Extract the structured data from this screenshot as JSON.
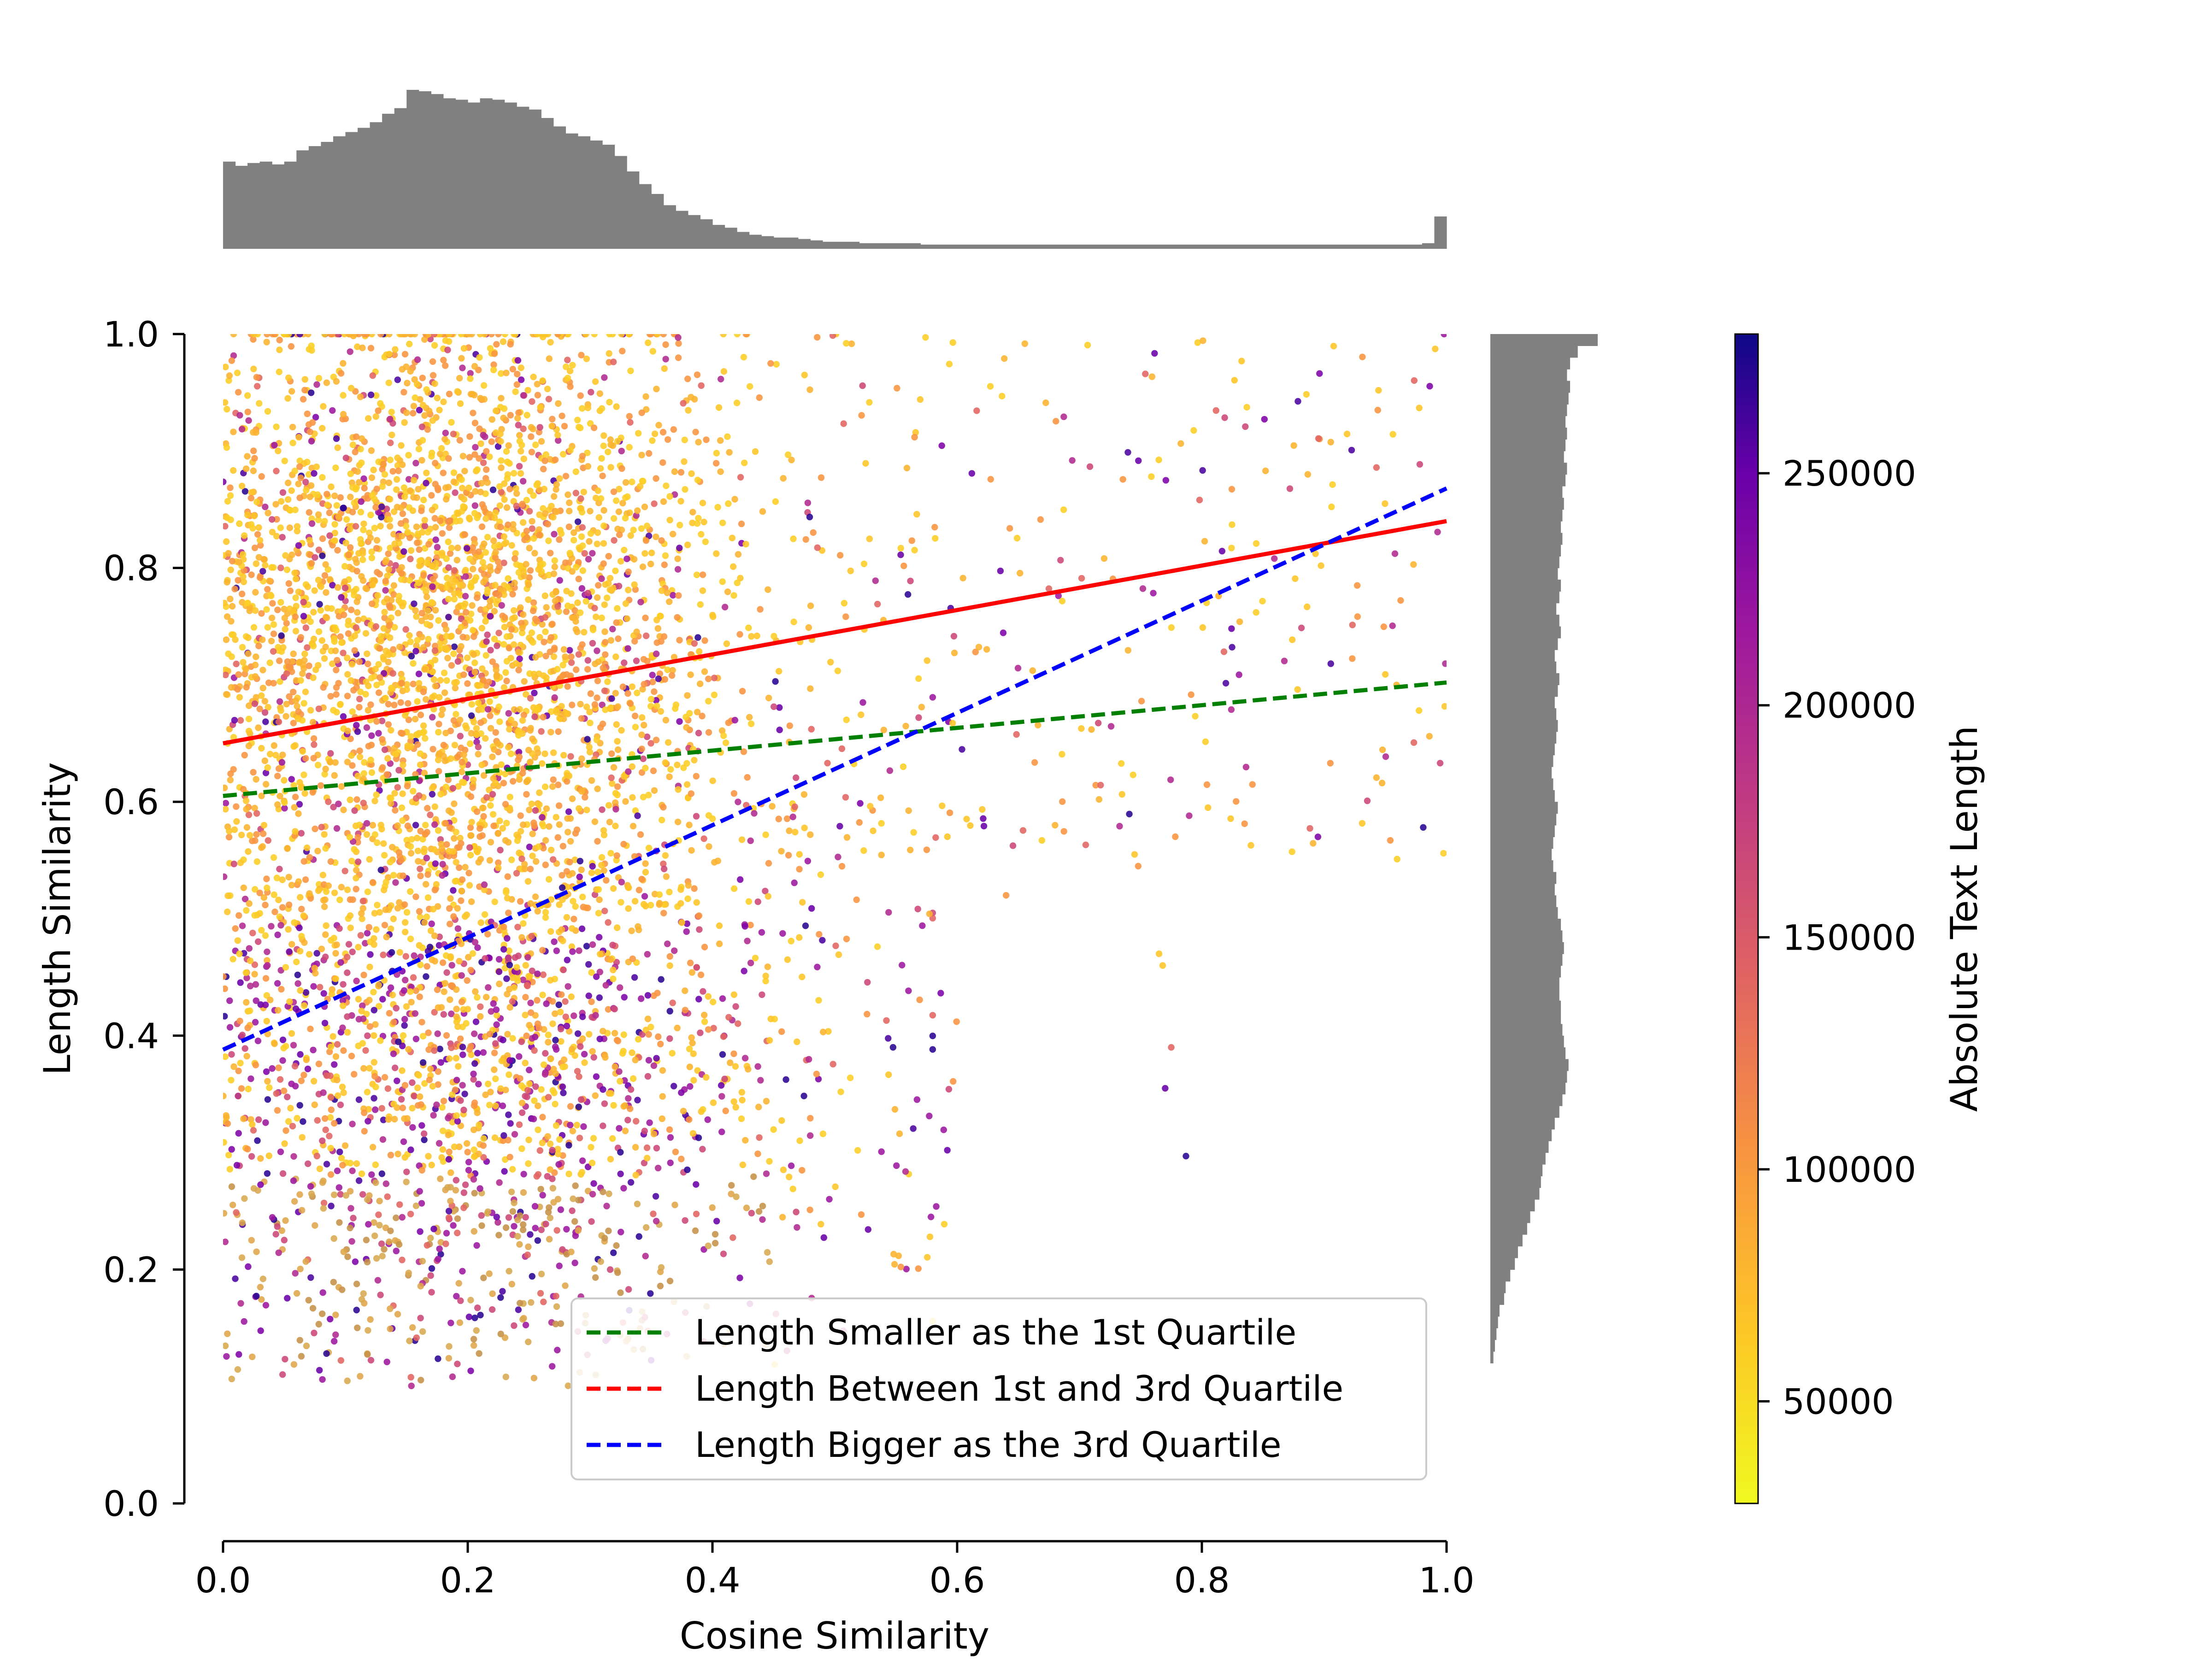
{
  "chart_data": {
    "type": "scatter",
    "title": "",
    "xlabel": "Cosine Similarity",
    "ylabel": "Length Similarity",
    "xlim": [
      0.0,
      1.0
    ],
    "ylim": [
      0.0,
      1.0
    ],
    "xticks": [
      "0.0",
      "0.2",
      "0.4",
      "0.6",
      "0.8",
      "1.0"
    ],
    "yticks": [
      "0.0",
      "0.2",
      "0.4",
      "0.6",
      "0.8",
      "1.0"
    ],
    "grid": false,
    "legend_position": "lower-right",
    "colorbar": {
      "label": "Absolute Text Length",
      "colormap": "plasma_r",
      "range": [
        28000,
        280000
      ],
      "ticks": [
        "50000",
        "100000",
        "150000",
        "200000",
        "250000"
      ],
      "tick_values": [
        50000,
        100000,
        150000,
        200000,
        250000
      ]
    },
    "regression_lines": [
      {
        "name": "Length Smaller as the 1st Quartile",
        "color": "#008000",
        "style": "dashed",
        "x": [
          0.0,
          1.0
        ],
        "y": [
          0.605,
          0.702
        ]
      },
      {
        "name": "Length Between 1st and 3rd Quartile",
        "color": "#ff0000",
        "style": "solid",
        "legend_style": "dashed",
        "x": [
          0.0,
          1.0
        ],
        "y": [
          0.65,
          0.84
        ]
      },
      {
        "name": "Length Bigger as the 3rd Quartile",
        "color": "#0000ff",
        "style": "dashed",
        "x": [
          0.0,
          1.0
        ],
        "y": [
          0.388,
          0.868
        ]
      }
    ],
    "marginal_x_histogram": {
      "color": "#808080",
      "bin_range": [
        0.0,
        1.0
      ],
      "counts": [
        62,
        59,
        61,
        62,
        60,
        62,
        70,
        73,
        76,
        80,
        83,
        86,
        90,
        96,
        100,
        113,
        112,
        110,
        107,
        106,
        104,
        107,
        106,
        104,
        101,
        99,
        93,
        87,
        82,
        80,
        77,
        74,
        66,
        55,
        46,
        39,
        31,
        27,
        24,
        21,
        17,
        15,
        12,
        10,
        9,
        8,
        8,
        7,
        6,
        5,
        5,
        5,
        4,
        4,
        4,
        4,
        4,
        3,
        3,
        3,
        3,
        3,
        3,
        3,
        3,
        3,
        3,
        3,
        3,
        3,
        3,
        3,
        3,
        3,
        3,
        3,
        3,
        3,
        3,
        3,
        3,
        3,
        3,
        3,
        3,
        3,
        3,
        3,
        3,
        3,
        3,
        3,
        3,
        3,
        3,
        3,
        3,
        3,
        4,
        23
      ]
    },
    "marginal_y_histogram": {
      "color": "#808080",
      "bin_range": [
        0.0,
        1.0
      ],
      "counts": [
        0,
        0,
        0,
        0,
        0,
        0,
        0,
        0,
        0,
        0,
        0,
        0,
        2,
        3,
        4,
        5,
        6,
        9,
        10,
        13,
        16,
        18,
        21,
        24,
        26,
        29,
        32,
        33,
        34,
        36,
        38,
        40,
        42,
        45,
        47,
        49,
        50,
        51,
        49,
        48,
        47,
        46,
        46,
        45,
        45,
        46,
        47,
        48,
        47,
        46,
        44,
        43,
        42,
        43,
        41,
        40,
        41,
        42,
        43,
        44,
        42,
        41,
        40,
        41,
        42,
        43,
        44,
        43,
        42,
        44,
        45,
        43,
        42,
        44,
        46,
        45,
        43,
        45,
        46,
        44,
        45,
        46,
        47,
        46,
        47,
        48,
        47,
        49,
        50,
        48,
        49,
        50,
        49,
        50,
        51,
        52,
        50,
        52,
        57,
        70
      ]
    },
    "scatter_summary": {
      "points_rendered": "approximate density reconstruction of several thousand points",
      "dense_region_x": [
        0.0,
        0.45
      ],
      "sparse_region_x": [
        0.45,
        1.0
      ]
    }
  }
}
